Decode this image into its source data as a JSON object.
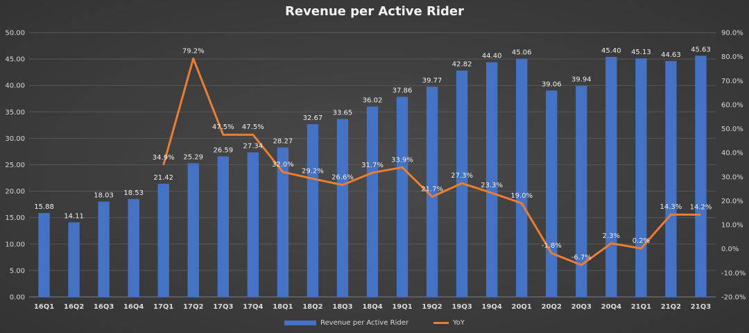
{
  "chart_data": {
    "type": "bar",
    "title": "Revenue per Active Rider",
    "categories": [
      "16Q1",
      "16Q2",
      "16Q3",
      "16Q4",
      "17Q1",
      "17Q2",
      "17Q3",
      "17Q4",
      "18Q1",
      "18Q2",
      "18Q3",
      "18Q4",
      "19Q1",
      "19Q2",
      "19Q3",
      "19Q4",
      "20Q1",
      "20Q2",
      "20Q3",
      "20Q4",
      "21Q1",
      "21Q2",
      "21Q3"
    ],
    "series": [
      {
        "name": "Revenue per Active Rider",
        "type": "bar",
        "axis": "left",
        "color": "#4472c4",
        "values": [
          15.88,
          14.11,
          18.03,
          18.53,
          21.42,
          25.29,
          26.59,
          27.34,
          28.27,
          32.67,
          33.65,
          36.02,
          37.86,
          39.77,
          42.82,
          44.4,
          45.06,
          39.06,
          39.94,
          45.4,
          45.13,
          44.63,
          45.63
        ],
        "labels": [
          "15.88",
          "14.11",
          "18.03",
          "18.53",
          "21.42",
          "25.29",
          "26.59",
          "27.34",
          "28.27",
          "32.67",
          "33.65",
          "36.02",
          "37.86",
          "39.77",
          "42.82",
          "44.40",
          "45.06",
          "39.06",
          "39.94",
          "45.40",
          "45.13",
          "44.63",
          "45.63"
        ]
      },
      {
        "name": "YoY",
        "type": "line",
        "axis": "right",
        "color": "#ed7d31",
        "values": [
          null,
          null,
          null,
          null,
          34.9,
          79.2,
          47.5,
          47.5,
          32.0,
          29.2,
          26.6,
          31.7,
          33.9,
          21.7,
          27.3,
          23.3,
          19.0,
          -1.8,
          -6.7,
          2.3,
          0.2,
          14.3,
          14.2
        ],
        "labels": [
          "",
          "",
          "",
          "",
          "34.9%",
          "79.2%",
          "47.5%",
          "47.5%",
          "32.0%",
          "29.2%",
          "26.6%",
          "31.7%",
          "33.9%",
          "21.7%",
          "27.3%",
          "23.3%",
          "19.0%",
          "-1.8%",
          "-6.7%",
          "2.3%",
          "0.2%",
          "14.3%",
          "14.2%"
        ]
      }
    ],
    "y_left": {
      "range": [
        0,
        50
      ],
      "ticks": [
        0,
        5,
        10,
        15,
        20,
        25,
        30,
        35,
        40,
        45,
        50
      ],
      "tick_labels": [
        "0.00",
        "5.00",
        "10.00",
        "15.00",
        "20.00",
        "25.00",
        "30.00",
        "35.00",
        "40.00",
        "45.00",
        "50.00"
      ]
    },
    "y_right": {
      "range": [
        -20,
        90
      ],
      "ticks": [
        -20,
        -10,
        0,
        10,
        20,
        30,
        40,
        50,
        60,
        70,
        80,
        90
      ],
      "tick_labels": [
        "-20.0%",
        "-10.0%",
        "0.0%",
        "10.0%",
        "20.0%",
        "30.0%",
        "40.0%",
        "50.0%",
        "60.0%",
        "70.0%",
        "80.0%",
        "90.0%"
      ]
    },
    "grid": true,
    "legend_position": "bottom"
  }
}
